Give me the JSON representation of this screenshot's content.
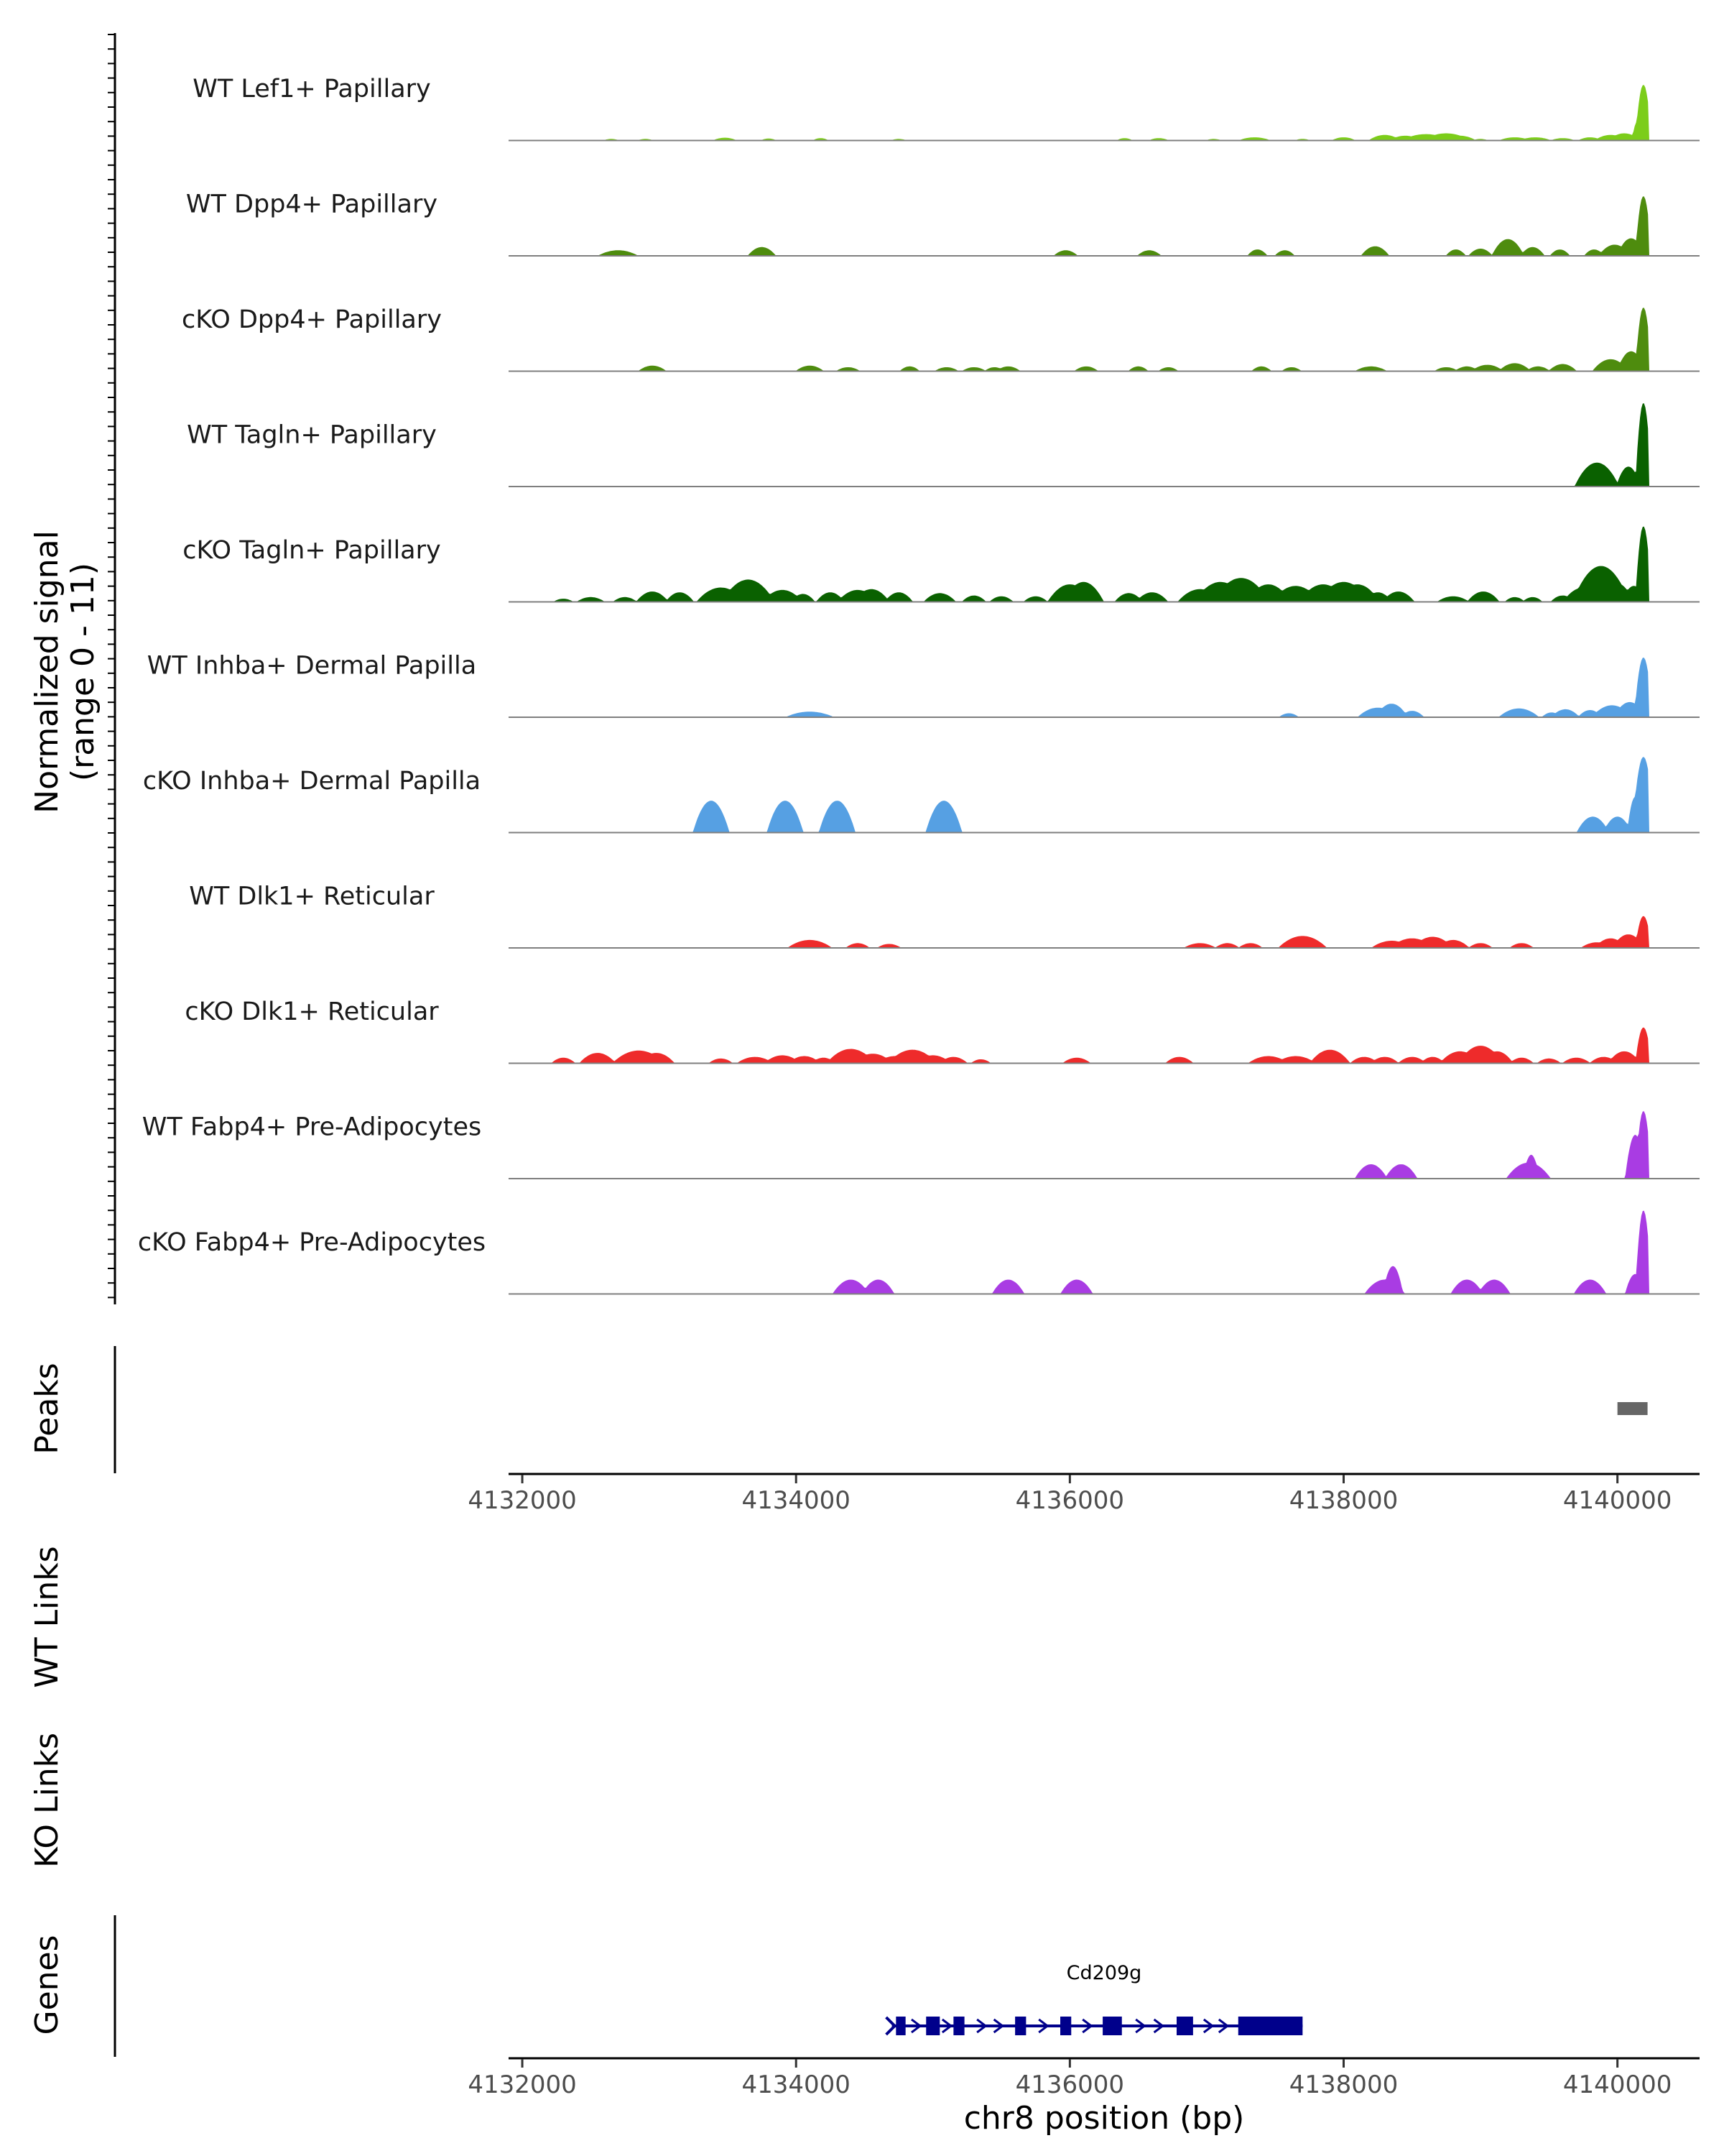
{
  "y_axis": {
    "title_line1": "Normalized signal",
    "title_line2": "(range 0 - 11)"
  },
  "panels": {
    "peaks": "Peaks",
    "wt_links": "WT Links",
    "ko_links": "KO Links",
    "genes": "Genes"
  },
  "chart_data": {
    "type": "area",
    "title": "",
    "chromosome": "chr8",
    "xlabel": "chr8 position (bp)",
    "ylabel": "Normalized signal (range 0 - 11)",
    "xlim": [
      4131900,
      4140600
    ],
    "ylim": [
      0,
      11
    ],
    "x_ticks": [
      4132000,
      4134000,
      4136000,
      4138000,
      4140000
    ],
    "x_tick_labels": [
      "4132000",
      "4134000",
      "4136000",
      "4138000",
      "4140000"
    ],
    "tracks": [
      {
        "name": "WT Lef1+ Papillary",
        "color": "#7CCD1A",
        "peaks": [
          [
            4132650,
            0.2,
            40
          ],
          [
            4132900,
            0.2,
            40
          ],
          [
            4133480,
            0.35,
            60
          ],
          [
            4133800,
            0.25,
            40
          ],
          [
            4134180,
            0.3,
            40
          ],
          [
            4134750,
            0.2,
            40
          ],
          [
            4136400,
            0.3,
            40
          ],
          [
            4136650,
            0.3,
            50
          ],
          [
            4137050,
            0.2,
            40
          ],
          [
            4137350,
            0.4,
            80
          ],
          [
            4137700,
            0.2,
            40
          ],
          [
            4138000,
            0.4,
            60
          ],
          [
            4138300,
            0.7,
            80
          ],
          [
            4138450,
            0.6,
            80
          ],
          [
            4138600,
            0.8,
            120
          ],
          [
            4138750,
            0.9,
            120
          ],
          [
            4138850,
            0.6,
            80
          ],
          [
            4139000,
            0.2,
            40
          ],
          [
            4139250,
            0.4,
            80
          ],
          [
            4139400,
            0.4,
            80
          ],
          [
            4139600,
            0.3,
            60
          ],
          [
            4139800,
            0.4,
            60
          ],
          [
            4139950,
            0.7,
            80
          ],
          [
            4140050,
            0.9,
            80
          ],
          [
            4140150,
            2.5,
            30
          ],
          [
            4140190,
            7,
            40
          ]
        ]
      },
      {
        "name": "WT Dpp4+ Papillary",
        "color": "#4E8C0E",
        "peaks": [
          [
            4132700,
            0.7,
            100
          ],
          [
            4133750,
            1.1,
            70
          ],
          [
            4135970,
            0.7,
            60
          ],
          [
            4136580,
            0.7,
            60
          ],
          [
            4137370,
            0.8,
            50
          ],
          [
            4137570,
            0.7,
            50
          ],
          [
            4138230,
            1.2,
            70
          ],
          [
            4138820,
            0.8,
            50
          ],
          [
            4139000,
            0.9,
            60
          ],
          [
            4139200,
            2.1,
            80
          ],
          [
            4139380,
            1.1,
            60
          ],
          [
            4139580,
            0.8,
            50
          ],
          [
            4139830,
            0.8,
            50
          ],
          [
            4139980,
            1.4,
            80
          ],
          [
            4140100,
            2.2,
            70
          ],
          [
            4140190,
            7.5,
            40
          ]
        ]
      },
      {
        "name": "cKO Dpp4+ Papillary",
        "color": "#4E8C0E",
        "peaks": [
          [
            4132950,
            0.7,
            70
          ],
          [
            4134100,
            0.7,
            70
          ],
          [
            4134380,
            0.5,
            60
          ],
          [
            4134830,
            0.6,
            50
          ],
          [
            4135100,
            0.5,
            60
          ],
          [
            4135300,
            0.5,
            60
          ],
          [
            4135450,
            0.5,
            50
          ],
          [
            4135550,
            0.6,
            60
          ],
          [
            4136120,
            0.6,
            60
          ],
          [
            4136500,
            0.6,
            50
          ],
          [
            4136720,
            0.5,
            50
          ],
          [
            4137400,
            0.6,
            50
          ],
          [
            4137620,
            0.5,
            50
          ],
          [
            4138200,
            0.6,
            80
          ],
          [
            4138750,
            0.5,
            60
          ],
          [
            4138900,
            0.6,
            60
          ],
          [
            4139050,
            0.8,
            80
          ],
          [
            4139250,
            1.0,
            80
          ],
          [
            4139420,
            0.6,
            60
          ],
          [
            4139600,
            0.9,
            70
          ],
          [
            4139950,
            1.5,
            90
          ],
          [
            4140100,
            2.5,
            70
          ],
          [
            4140190,
            8,
            40
          ]
        ]
      },
      {
        "name": "WT Tagln+ Papillary",
        "color": "#0A6100",
        "peaks": [
          [
            4139850,
            3,
            110
          ],
          [
            4140080,
            2.5,
            60
          ],
          [
            4140190,
            10.5,
            40
          ]
        ]
      },
      {
        "name": "cKO Tagln+ Papillary",
        "color": "#0A6100",
        "peaks": [
          [
            4132300,
            0.4,
            50
          ],
          [
            4132500,
            0.6,
            70
          ],
          [
            4132750,
            0.6,
            60
          ],
          [
            4132950,
            1.3,
            80
          ],
          [
            4133150,
            1.2,
            70
          ],
          [
            4133450,
            1.8,
            120
          ],
          [
            4133650,
            2.8,
            130
          ],
          [
            4133900,
            1.5,
            100
          ],
          [
            4134050,
            1.0,
            60
          ],
          [
            4134250,
            1.2,
            70
          ],
          [
            4134450,
            1.5,
            100
          ],
          [
            4134550,
            1.6,
            90
          ],
          [
            4134750,
            1.2,
            70
          ],
          [
            4135050,
            1.1,
            80
          ],
          [
            4135300,
            0.8,
            60
          ],
          [
            4135500,
            0.7,
            60
          ],
          [
            4135750,
            0.7,
            60
          ],
          [
            4136000,
            2.2,
            110
          ],
          [
            4136100,
            2.5,
            100
          ],
          [
            4136430,
            1.1,
            70
          ],
          [
            4136600,
            1.2,
            80
          ],
          [
            4136950,
            1.6,
            110
          ],
          [
            4137100,
            2.5,
            130
          ],
          [
            4137250,
            3.0,
            140
          ],
          [
            4137450,
            2.2,
            110
          ],
          [
            4137650,
            2.0,
            120
          ],
          [
            4137850,
            2.2,
            120
          ],
          [
            4138000,
            2.5,
            130
          ],
          [
            4138100,
            2.2,
            110
          ],
          [
            4138250,
            1.2,
            70
          ],
          [
            4138400,
            1.3,
            80
          ],
          [
            4138800,
            0.7,
            80
          ],
          [
            4139020,
            1.3,
            80
          ],
          [
            4139250,
            0.6,
            50
          ],
          [
            4139380,
            0.6,
            50
          ],
          [
            4139600,
            0.8,
            60
          ],
          [
            4139750,
            1.8,
            100
          ],
          [
            4139880,
            4.5,
            140
          ],
          [
            4140000,
            2.3,
            80
          ],
          [
            4140120,
            2.0,
            60
          ],
          [
            4140190,
            9.5,
            40
          ]
        ]
      },
      {
        "name": "WT Inhba+ Dermal Papilla",
        "color": "#56A0E3",
        "peaks": [
          [
            4134100,
            0.7,
            120
          ],
          [
            4137600,
            0.5,
            50
          ],
          [
            4138250,
            1.2,
            100
          ],
          [
            4138350,
            1.7,
            80
          ],
          [
            4138500,
            0.8,
            60
          ],
          [
            4139280,
            1.1,
            100
          ],
          [
            4139520,
            0.6,
            50
          ],
          [
            4139620,
            1.0,
            70
          ],
          [
            4139800,
            0.9,
            60
          ],
          [
            4139960,
            1.5,
            100
          ],
          [
            4140090,
            1.9,
            80
          ],
          [
            4140190,
            7.5,
            45
          ]
        ]
      },
      {
        "name": "cKO Inhba+ Dermal Papilla",
        "color": "#56A0E3",
        "peaks": [
          [
            4133380,
            4.0,
            90
          ],
          [
            4133920,
            4.0,
            90
          ],
          [
            4134300,
            4.0,
            90
          ],
          [
            4135080,
            4.0,
            90
          ],
          [
            4139820,
            2.0,
            80
          ],
          [
            4140000,
            2.0,
            70
          ],
          [
            4140130,
            4.5,
            40
          ],
          [
            4140190,
            9.5,
            55
          ]
        ]
      },
      {
        "name": "WT Dlk1+ Reticular",
        "color": "#EE2B2B",
        "peaks": [
          [
            4134100,
            1.0,
            110
          ],
          [
            4134450,
            0.6,
            60
          ],
          [
            4134680,
            0.5,
            60
          ],
          [
            4136950,
            0.6,
            80
          ],
          [
            4137150,
            0.6,
            60
          ],
          [
            4137320,
            0.6,
            60
          ],
          [
            4137700,
            1.5,
            120
          ],
          [
            4138350,
            0.9,
            100
          ],
          [
            4138500,
            1.2,
            110
          ],
          [
            4138650,
            1.4,
            100
          ],
          [
            4138800,
            1.0,
            80
          ],
          [
            4139000,
            0.6,
            60
          ],
          [
            4139300,
            0.6,
            60
          ],
          [
            4139850,
            0.7,
            80
          ],
          [
            4139950,
            1.2,
            80
          ],
          [
            4140080,
            1.7,
            80
          ],
          [
            4140190,
            4.0,
            40
          ]
        ]
      },
      {
        "name": "cKO Dlk1+ Reticular",
        "color": "#EE2B2B",
        "peaks": [
          [
            4132300,
            0.7,
            60
          ],
          [
            4132550,
            1.3,
            90
          ],
          [
            4132850,
            1.6,
            130
          ],
          [
            4132980,
            1.3,
            90
          ],
          [
            4133450,
            0.6,
            60
          ],
          [
            4133700,
            0.8,
            90
          ],
          [
            4133900,
            1.0,
            90
          ],
          [
            4134060,
            0.9,
            80
          ],
          [
            4134200,
            0.7,
            60
          ],
          [
            4134400,
            1.8,
            120
          ],
          [
            4134560,
            1.2,
            100
          ],
          [
            4134720,
            0.9,
            90
          ],
          [
            4134850,
            1.7,
            120
          ],
          [
            4135000,
            1.0,
            90
          ],
          [
            4135150,
            0.8,
            70
          ],
          [
            4135350,
            0.5,
            50
          ],
          [
            4136050,
            0.7,
            70
          ],
          [
            4136800,
            0.8,
            70
          ],
          [
            4137450,
            0.9,
            100
          ],
          [
            4137650,
            0.9,
            100
          ],
          [
            4137900,
            1.7,
            100
          ],
          [
            4138150,
            0.8,
            70
          ],
          [
            4138300,
            0.8,
            70
          ],
          [
            4138500,
            0.8,
            70
          ],
          [
            4138650,
            0.8,
            60
          ],
          [
            4138850,
            1.5,
            100
          ],
          [
            4139000,
            2.2,
            110
          ],
          [
            4139120,
            1.5,
            80
          ],
          [
            4139300,
            0.7,
            60
          ],
          [
            4139500,
            0.6,
            60
          ],
          [
            4139700,
            0.7,
            70
          ],
          [
            4139900,
            0.8,
            70
          ],
          [
            4140050,
            1.5,
            80
          ],
          [
            4140190,
            4.5,
            40
          ]
        ]
      },
      {
        "name": "WT Fabp4+ Pre-Adipocytes",
        "color": "#A93CE3",
        "peaks": [
          [
            4138200,
            1.8,
            80
          ],
          [
            4138420,
            1.8,
            80
          ],
          [
            4139350,
            2.0,
            110
          ],
          [
            4139370,
            3.0,
            40
          ],
          [
            4140130,
            5.5,
            50
          ],
          [
            4140190,
            8.5,
            40
          ]
        ]
      },
      {
        "name": "cKO Fabp4+ Pre-Adipocytes",
        "color": "#A93CE3",
        "peaks": [
          [
            4134400,
            1.8,
            90
          ],
          [
            4134600,
            1.8,
            80
          ],
          [
            4135550,
            1.8,
            80
          ],
          [
            4136050,
            1.8,
            80
          ],
          [
            4138300,
            1.8,
            100
          ],
          [
            4138360,
            3.5,
            50
          ],
          [
            4138900,
            1.8,
            80
          ],
          [
            4139100,
            1.8,
            80
          ],
          [
            4139800,
            1.8,
            80
          ],
          [
            4140130,
            2.5,
            50
          ],
          [
            4140190,
            10.5,
            40
          ]
        ]
      }
    ],
    "peaks_track": {
      "name": "Peaks",
      "regions": [
        [
          4140000,
          4140220
        ]
      ],
      "color": "#666666"
    },
    "gene": {
      "name": "Cd209g",
      "start": 4134700,
      "end": 4137700,
      "strand": "+",
      "color": "#00008B",
      "exons": [
        [
          4134730,
          4134800
        ],
        [
          4134950,
          4135050
        ],
        [
          4135150,
          4135230
        ],
        [
          4135600,
          4135680
        ],
        [
          4135930,
          4136010
        ],
        [
          4136240,
          4136380
        ],
        [
          4136780,
          4136900
        ],
        [
          4137230,
          4137700
        ]
      ]
    }
  }
}
